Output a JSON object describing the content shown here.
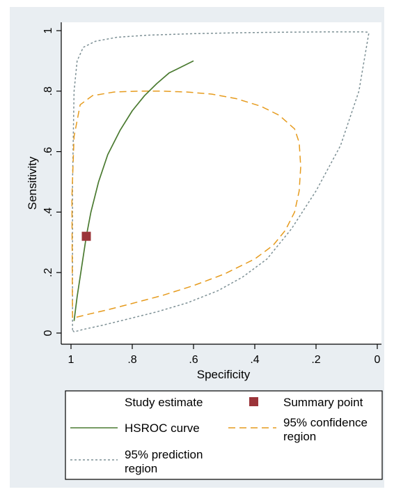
{
  "chart_data": {
    "type": "line",
    "title": "",
    "xlabel": "Specificity",
    "ylabel": "Sensitivity",
    "xlim": [
      1,
      0
    ],
    "ylim": [
      0,
      1
    ],
    "x_reversed": true,
    "xticks": [
      "1",
      ".8",
      ".6",
      ".4",
      ".2",
      "0"
    ],
    "xtick_values": [
      1,
      0.8,
      0.6,
      0.4,
      0.2,
      0
    ],
    "yticks": [
      "0",
      ".2",
      ".4",
      ".6",
      ".8",
      "1"
    ],
    "ytick_values": [
      0,
      0.2,
      0.4,
      0.6,
      0.8,
      1
    ],
    "grid": false,
    "legend_position": "bottom",
    "series": [
      {
        "name": "HSROC curve",
        "style": "solid",
        "color": "#4a7a30",
        "x": [
          0.99,
          0.98,
          0.965,
          0.95,
          0.935,
          0.91,
          0.88,
          0.84,
          0.8,
          0.76,
          0.72,
          0.68,
          0.64,
          0.6
        ],
        "y": [
          0.04,
          0.12,
          0.22,
          0.32,
          0.4,
          0.5,
          0.59,
          0.67,
          0.735,
          0.785,
          0.825,
          0.86,
          0.88,
          0.9
        ]
      },
      {
        "name": "95% confidence region",
        "style": "dashed",
        "color": "#e69b1d",
        "x": [
          0.995,
          0.996,
          0.997,
          0.99,
          0.97,
          0.93,
          0.86,
          0.78,
          0.7,
          0.62,
          0.54,
          0.46,
          0.38,
          0.32,
          0.27,
          0.255,
          0.25,
          0.255,
          0.27,
          0.3,
          0.34,
          0.4,
          0.5,
          0.6,
          0.7,
          0.8,
          0.88,
          0.94,
          0.98,
          0.99,
          0.993,
          0.995
        ],
        "y": [
          0.05,
          0.2,
          0.45,
          0.65,
          0.755,
          0.785,
          0.797,
          0.8,
          0.8,
          0.797,
          0.79,
          0.775,
          0.75,
          0.72,
          0.675,
          0.63,
          0.55,
          0.47,
          0.4,
          0.34,
          0.29,
          0.245,
          0.195,
          0.157,
          0.125,
          0.098,
          0.077,
          0.063,
          0.053,
          0.05,
          0.05,
          0.05
        ]
      },
      {
        "name": "95% prediction region",
        "style": "dotted",
        "color": "#7d9095",
        "x": [
          0.995,
          0.995,
          0.99,
          0.98,
          0.96,
          0.92,
          0.85,
          0.75,
          0.6,
          0.45,
          0.3,
          0.15,
          0.05,
          0.03,
          0.028,
          0.06,
          0.12,
          0.2,
          0.28,
          0.36,
          0.44,
          0.52,
          0.62,
          0.72,
          0.82,
          0.9,
          0.96,
          0.99,
          0.995
        ],
        "y": [
          0.01,
          0.5,
          0.8,
          0.9,
          0.945,
          0.965,
          0.978,
          0.985,
          0.99,
          0.993,
          0.995,
          0.996,
          0.996,
          0.995,
          0.99,
          0.8,
          0.62,
          0.47,
          0.345,
          0.245,
          0.185,
          0.14,
          0.1,
          0.07,
          0.045,
          0.025,
          0.012,
          0.004,
          0.01
        ]
      }
    ],
    "summary_point": {
      "name": "Summary point",
      "x": 0.95,
      "y": 0.32,
      "color": "#9b3439"
    },
    "study_estimate": {
      "name": "Study estimate"
    }
  },
  "legend": {
    "study_estimate": "Study estimate",
    "summary_point": "Summary point",
    "hsroc": "HSROC curve",
    "confidence_line1": "95% confidence",
    "confidence_line2": "region",
    "prediction_line1": "95% prediction",
    "prediction_line2": "region"
  },
  "colors": {
    "frame_background": "#e9eef2",
    "plot_background": "#ffffff",
    "hsroc": "#4a7a30",
    "confidence": "#e69b1d",
    "prediction": "#7d9095",
    "summary": "#9b3439"
  }
}
